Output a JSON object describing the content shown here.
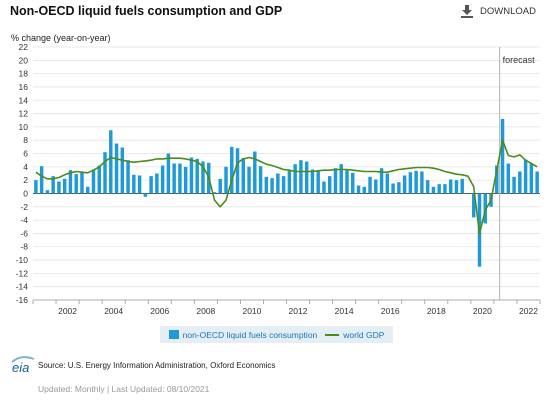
{
  "header": {
    "title": "Non-OECD liquid fuels consumption and GDP",
    "download_label": "DOWNLOAD",
    "download_icon": "download-icon"
  },
  "chart_data": {
    "type": "bar",
    "ylabel": "% change (year-on-year)",
    "ylim": [
      -16,
      22
    ],
    "yticks": [
      -16,
      -14,
      -12,
      -10,
      -8,
      -6,
      -4,
      -2,
      0,
      2,
      4,
      6,
      8,
      10,
      12,
      14,
      16,
      18,
      20,
      22
    ],
    "x_range": [
      "2001-01",
      "2022-12"
    ],
    "xticks": [
      "2002",
      "2004",
      "2006",
      "2008",
      "2010",
      "2012",
      "2014",
      "2016",
      "2018",
      "2020",
      "2022"
    ],
    "forecast_label": "forecast",
    "forecast_start": "2021-Q2",
    "grid": true,
    "legend_position": "bottom",
    "colors": {
      "bars": "#1f9ad6",
      "line": "#4a8c1c"
    },
    "quarters": [
      "2001Q1",
      "2001Q2",
      "2001Q3",
      "2001Q4",
      "2002Q1",
      "2002Q2",
      "2002Q3",
      "2002Q4",
      "2003Q1",
      "2003Q2",
      "2003Q3",
      "2003Q4",
      "2004Q1",
      "2004Q2",
      "2004Q3",
      "2004Q4",
      "2005Q1",
      "2005Q2",
      "2005Q3",
      "2005Q4",
      "2006Q1",
      "2006Q2",
      "2006Q3",
      "2006Q4",
      "2007Q1",
      "2007Q2",
      "2007Q3",
      "2007Q4",
      "2008Q1",
      "2008Q2",
      "2008Q3",
      "2008Q4",
      "2009Q1",
      "2009Q2",
      "2009Q3",
      "2009Q4",
      "2010Q1",
      "2010Q2",
      "2010Q3",
      "2010Q4",
      "2011Q1",
      "2011Q2",
      "2011Q3",
      "2011Q4",
      "2012Q1",
      "2012Q2",
      "2012Q3",
      "2012Q4",
      "2013Q1",
      "2013Q2",
      "2013Q3",
      "2013Q4",
      "2014Q1",
      "2014Q2",
      "2014Q3",
      "2014Q4",
      "2015Q1",
      "2015Q2",
      "2015Q3",
      "2015Q4",
      "2016Q1",
      "2016Q2",
      "2016Q3",
      "2016Q4",
      "2017Q1",
      "2017Q2",
      "2017Q3",
      "2017Q4",
      "2018Q1",
      "2018Q2",
      "2018Q3",
      "2018Q4",
      "2019Q1",
      "2019Q2",
      "2019Q3",
      "2019Q4",
      "2020Q1",
      "2020Q2",
      "2020Q3",
      "2020Q4",
      "2021Q1",
      "2021Q2",
      "2021Q3",
      "2021Q4",
      "2022Q1",
      "2022Q2",
      "2022Q3",
      "2022Q4"
    ],
    "series": [
      {
        "name": "non-OECD liquid fuels consumption",
        "kind": "bar",
        "values": [
          2.0,
          4.1,
          0.5,
          2.6,
          1.8,
          2.2,
          3.5,
          2.9,
          3.2,
          1.0,
          3.6,
          4.2,
          6.2,
          9.5,
          7.5,
          6.9,
          5.0,
          2.8,
          2.7,
          -0.5,
          2.6,
          3.0,
          4.2,
          6.0,
          4.5,
          4.5,
          4.0,
          5.4,
          5.2,
          4.8,
          4.6,
          0.2,
          2.2,
          4.0,
          7.0,
          6.8,
          5.3,
          4.0,
          6.3,
          4.1,
          2.5,
          2.3,
          3.0,
          2.6,
          3.6,
          4.4,
          5.0,
          4.8,
          3.6,
          3.3,
          1.8,
          2.6,
          3.8,
          4.4,
          3.5,
          3.1,
          1.2,
          1.0,
          2.5,
          2.1,
          3.8,
          3.0,
          1.5,
          1.7,
          2.7,
          3.2,
          3.4,
          3.3,
          2.0,
          1.0,
          1.4,
          1.4,
          2.1,
          2.0,
          2.2,
          0.0,
          -3.6,
          -11.0,
          -4.5,
          -2.0,
          4.2,
          11.2,
          4.5,
          2.5,
          3.3,
          5.1,
          4.5,
          3.3
        ]
      },
      {
        "name": "world GDP",
        "kind": "line",
        "values": [
          3.2,
          2.6,
          2.2,
          2.2,
          2.4,
          2.8,
          3.1,
          3.3,
          3.2,
          3.1,
          3.5,
          4.0,
          4.8,
          5.4,
          5.2,
          5.0,
          4.8,
          4.7,
          4.8,
          4.9,
          5.0,
          5.2,
          5.2,
          5.3,
          5.3,
          5.3,
          5.2,
          5.0,
          4.8,
          4.0,
          2.5,
          -1.0,
          -2.0,
          -1.0,
          2.0,
          4.6,
          5.2,
          5.4,
          5.2,
          4.8,
          4.4,
          4.2,
          3.9,
          3.6,
          3.5,
          3.3,
          3.3,
          3.3,
          3.3,
          3.4,
          3.5,
          3.5,
          3.6,
          3.6,
          3.6,
          3.5,
          3.4,
          3.3,
          3.3,
          3.3,
          3.2,
          3.2,
          3.4,
          3.6,
          3.7,
          3.8,
          3.9,
          3.9,
          3.9,
          3.8,
          3.6,
          3.3,
          3.1,
          2.9,
          2.8,
          2.6,
          1.0,
          -6.0,
          -2.5,
          -1.0,
          3.5,
          8.0,
          5.7,
          5.5,
          5.8,
          5.0,
          4.5,
          4.0
        ]
      }
    ]
  },
  "legend": {
    "bar_label": "non-OECD liquid fuels consumption",
    "line_label": "world GDP"
  },
  "footer": {
    "logo_text": "eia",
    "source": "Source: U.S. Energy Information Administration, Oxford Economics",
    "updated": "Updated: Monthly | Last Updated: 08/10/2021"
  }
}
